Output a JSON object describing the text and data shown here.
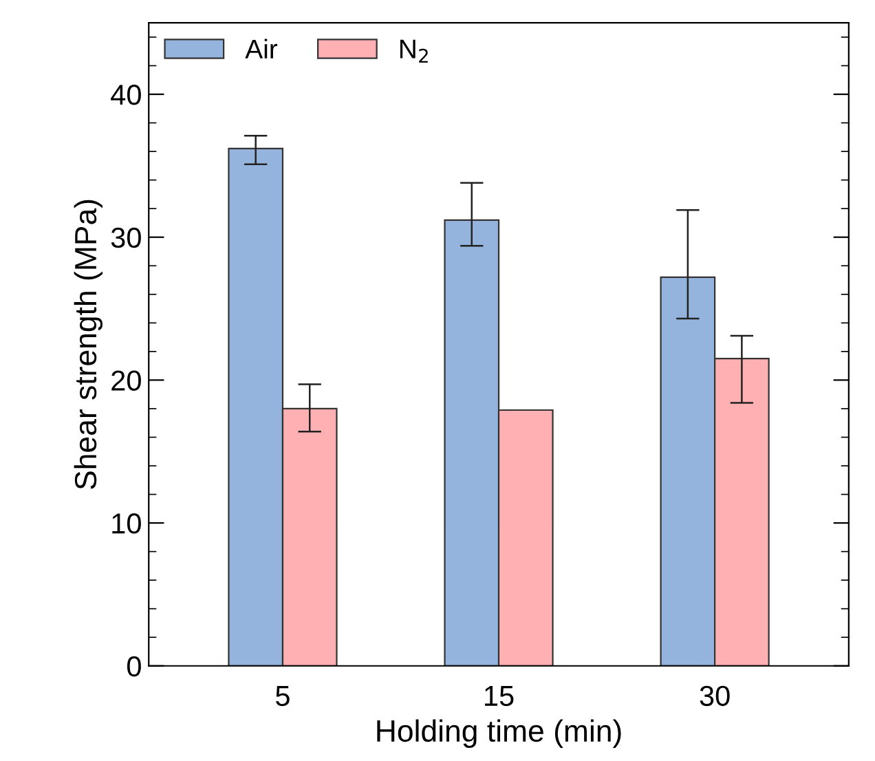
{
  "chart_data": {
    "type": "bar",
    "xlabel": "Holding time (min)",
    "ylabel": "Shear strength (MPa)",
    "categories": [
      "5",
      "15",
      "30"
    ],
    "series": [
      {
        "name": "Air",
        "color": "#94b4de",
        "values": [
          36.2,
          31.2,
          27.2
        ],
        "errors": [
          [
            35.1,
            37.1
          ],
          [
            29.4,
            33.8
          ],
          [
            24.3,
            31.9
          ]
        ]
      },
      {
        "name": "N$_{2}$",
        "color": "#ffb0b2",
        "values": [
          18.0,
          17.9,
          21.5
        ],
        "errors": [
          [
            16.4,
            19.7
          ],
          null,
          [
            18.4,
            23.1
          ]
        ]
      }
    ],
    "ylim": [
      0,
      45
    ],
    "yticks": [
      0,
      10,
      20,
      30,
      40
    ],
    "grid": false,
    "legend": "top left"
  }
}
